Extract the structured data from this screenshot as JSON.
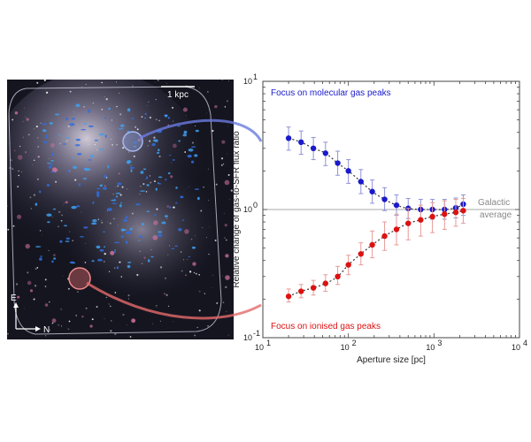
{
  "image_panel": {
    "scale_label": "1 kpc",
    "compass_east": "E",
    "compass_north": "N"
  },
  "chart_data": {
    "type": "scatter",
    "title": "",
    "xlabel": "Aperture size [pc]",
    "ylabel": "Relative change of gas-to-SFR flux ratio",
    "xscale": "log",
    "yscale": "log",
    "xlim": [
      10,
      10000
    ],
    "ylim": [
      0.1,
      10
    ],
    "x_ticks": [
      {
        "mantissa": "10",
        "exp": "1"
      },
      {
        "mantissa": "10",
        "exp": "2"
      },
      {
        "mantissa": "10",
        "exp": "3"
      },
      {
        "mantissa": "10",
        "exp": "4"
      }
    ],
    "y_ticks": [
      {
        "mantissa": "10",
        "exp": "-1"
      },
      {
        "mantissa": "10",
        "exp": "0"
      },
      {
        "mantissa": "10",
        "exp": "1"
      }
    ],
    "reference_line": {
      "y": 1.0,
      "label_line1": "Galactic",
      "label_line2": "average",
      "color": "#aaaaaa"
    },
    "grid": false,
    "series": [
      {
        "label": "Focus on molecular gas peaks",
        "color": "#1a1acc",
        "error_color": "#8f93d6",
        "x": [
          20,
          28,
          39,
          54,
          75,
          100,
          140,
          190,
          265,
          365,
          500,
          700,
          960,
          1330,
          1800,
          2200
        ],
        "y": [
          3.6,
          3.35,
          3.0,
          2.75,
          2.3,
          2.0,
          1.65,
          1.38,
          1.2,
          1.08,
          1.02,
          1.0,
          1.0,
          1.0,
          1.03,
          1.1
        ],
        "y_low": [
          2.9,
          2.7,
          2.45,
          2.2,
          1.85,
          1.6,
          1.33,
          1.12,
          0.98,
          0.9,
          0.85,
          0.84,
          0.84,
          0.84,
          0.86,
          0.9
        ],
        "y_high": [
          4.4,
          4.1,
          3.65,
          3.35,
          2.85,
          2.45,
          2.05,
          1.7,
          1.48,
          1.3,
          1.22,
          1.2,
          1.2,
          1.2,
          1.23,
          1.3
        ]
      },
      {
        "label": "Focus on ionised gas peaks",
        "color": "#dd1111",
        "error_color": "#e79a9a",
        "x": [
          20,
          28,
          39,
          54,
          75,
          100,
          140,
          190,
          265,
          365,
          500,
          700,
          960,
          1330,
          1800,
          2200
        ],
        "y": [
          0.21,
          0.23,
          0.245,
          0.265,
          0.3,
          0.37,
          0.45,
          0.53,
          0.62,
          0.7,
          0.78,
          0.83,
          0.88,
          0.92,
          0.95,
          0.98
        ],
        "y_low": [
          0.19,
          0.205,
          0.215,
          0.23,
          0.26,
          0.31,
          0.37,
          0.42,
          0.48,
          0.53,
          0.58,
          0.62,
          0.66,
          0.7,
          0.74,
          0.78
        ],
        "y_high": [
          0.24,
          0.26,
          0.28,
          0.31,
          0.36,
          0.44,
          0.55,
          0.68,
          0.8,
          0.92,
          1.02,
          1.08,
          1.13,
          1.17,
          1.2,
          1.22
        ]
      }
    ],
    "model_curve_color": "#333333"
  }
}
